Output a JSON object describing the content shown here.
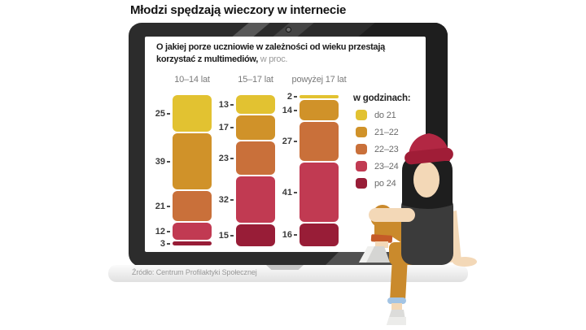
{
  "title": "Młodzi spędzają wieczory w internecie",
  "screen_heading": {
    "bold": "O jakiej porze uczniowie w zależności od wieku przestają korzystać z multimediów,",
    "suffix": " w proc."
  },
  "source": "Źródło: Centrum Profilaktyki Społecznej",
  "chart_data": {
    "type": "bar",
    "variant": "stacked-vertical-percentage",
    "title": "O jakiej porze uczniowie w zależności od wieku przestają korzystać z multimediów, w proc.",
    "unit": "proc.",
    "categories": [
      "10–14 lat",
      "15–17 lat",
      "powyżej 17 lat"
    ],
    "legend_title": "w godzinach:",
    "legend_position": "right",
    "series": [
      {
        "name": "do 21",
        "color": "#e2c231",
        "values": [
          25,
          13,
          2
        ]
      },
      {
        "name": "21–22",
        "color": "#d09229",
        "values": [
          39,
          17,
          14
        ]
      },
      {
        "name": "22–23",
        "color": "#c9703a",
        "values": [
          21,
          23,
          27
        ]
      },
      {
        "name": "23–24",
        "color": "#c13a52",
        "values": [
          12,
          32,
          41
        ]
      },
      {
        "name": "po 24",
        "color": "#981d37",
        "values": [
          3,
          15,
          16
        ]
      }
    ],
    "value_range": [
      0,
      100
    ],
    "gridlines": false,
    "data_labels": "each segment value shown left of bar"
  },
  "illustration_colors": {
    "beanie": "#b22743",
    "beanie_brim": "#a01d37",
    "hair": "#1e1e1e",
    "skin": "#f3d8b7",
    "tshirt": "#3b3b3b",
    "pants": "#ca8a2c",
    "ankle_cuff_left": "#c55b28",
    "ankle_cuff_right": "#a3c4e4",
    "shoes": "#d8d8d6",
    "laptop_bezel": "#2c2c2c",
    "laptop_base": "#e8e8e8"
  }
}
